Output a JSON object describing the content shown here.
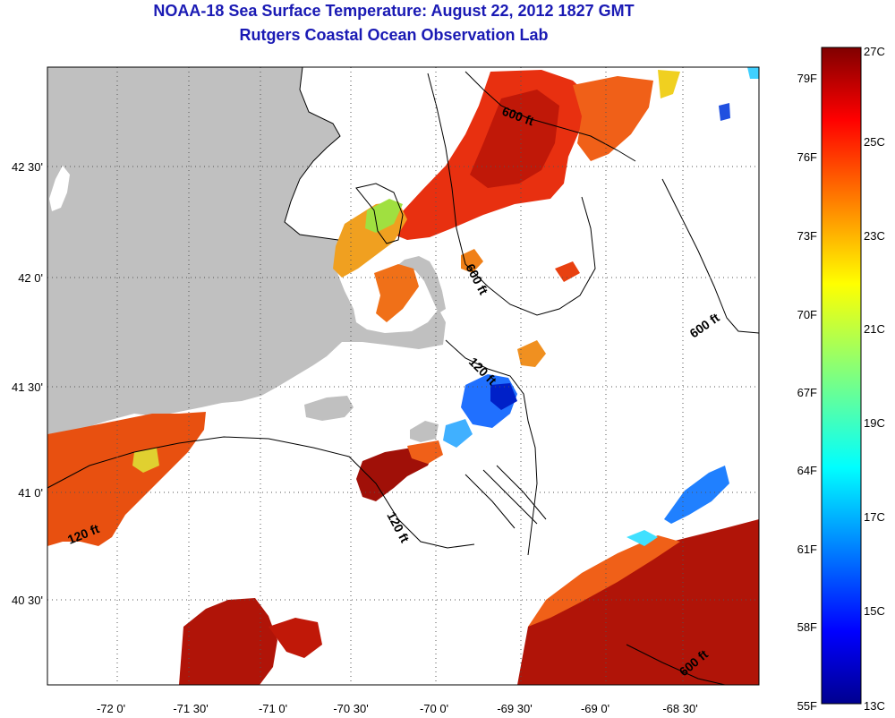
{
  "header": {
    "title": "NOAA-18 Sea Surface Temperature:  August 22, 2012 1827 GMT",
    "subtitle": "Rutgers Coastal Ocean Observation Lab"
  },
  "map": {
    "lon_labels": [
      "-72 0'",
      "-71 30'",
      "-71 0'",
      "-70 30'",
      "-70 0'",
      "-69 30'",
      "-69 0'",
      "-68 30'"
    ],
    "lat_labels": [
      "42 30'",
      "42 0'",
      "41 30'",
      "41 0'",
      "40 30'"
    ],
    "depth_labels": {
      "north_600": "600 ft",
      "mid_600": "600 ft",
      "east_600": "600 ft",
      "south_600": "600 ft",
      "shoals_120": "120 ft",
      "nantucket_120": "120 ft",
      "west_120": "120 ft"
    },
    "colors": {
      "land": "#c0c0c0",
      "contour": "#000000",
      "grid": "#555555"
    }
  },
  "colorbar": {
    "fahrenheit_labels": [
      "79F",
      "76F",
      "73F",
      "70F",
      "67F",
      "64F",
      "61F",
      "58F",
      "55F"
    ],
    "celsius_labels": [
      "27C",
      "25C",
      "23C",
      "21C",
      "19C",
      "17C",
      "15C",
      "13C"
    ],
    "range_c": [
      13,
      27
    ],
    "colormap": "jet"
  }
}
